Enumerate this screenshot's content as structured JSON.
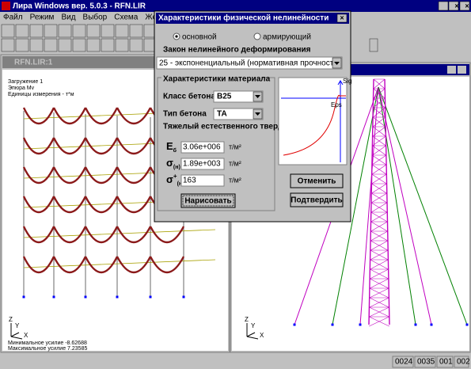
{
  "window": {
    "title": "Лира Windows вер. 5.0.3 - RFN.LIR",
    "menu": [
      "Файл",
      "Режим",
      "Вид",
      "Выбор",
      "Схема",
      "Жестко"
    ]
  },
  "left_view": {
    "title": "RFN.LIR:1",
    "info": [
      "Загружение  1",
      "Эпюра Mv",
      "Единицы измерения - т*м"
    ],
    "axes": [
      "Z",
      "Y",
      "X"
    ],
    "footer": [
      "Минимальное усилие -8.62688",
      "Максимальное усилие 7.23585"
    ]
  },
  "right_view": {
    "axes": [
      "Z",
      "Y",
      "X"
    ]
  },
  "dialog": {
    "title": "Характеристики физической нелинейности",
    "radios": [
      "основной",
      "армирующий"
    ],
    "law_label": "Закон нелинейного деформирования",
    "law": "25 - экспоненциальный (нормативная прочность)",
    "group": "Характеристики материала",
    "class_label": "Класс бетона",
    "class": "B25",
    "type_label": "Тип бетона",
    "type": "ТА",
    "type_desc": "Тяжелый естественного тверд",
    "params": [
      {
        "symbol": "E",
        "sub": "б",
        "value": "3.06e+006",
        "unit": "т/м²"
      },
      {
        "symbol": "σ",
        "sub": "(н)",
        "value": "1.89e+003",
        "unit": "т/м²"
      },
      {
        "symbol": "σ",
        "sup": "+",
        "sub": "(н)",
        "value": "163",
        "unit": "т/м²"
      }
    ],
    "draw": "Нарисовать",
    "graph": {
      "y": "Sig",
      "x": "Eps"
    },
    "cancel": "Отменить",
    "ok": "Подтвердить"
  },
  "status": [
    "0024",
    "0035",
    "001",
    "002"
  ]
}
